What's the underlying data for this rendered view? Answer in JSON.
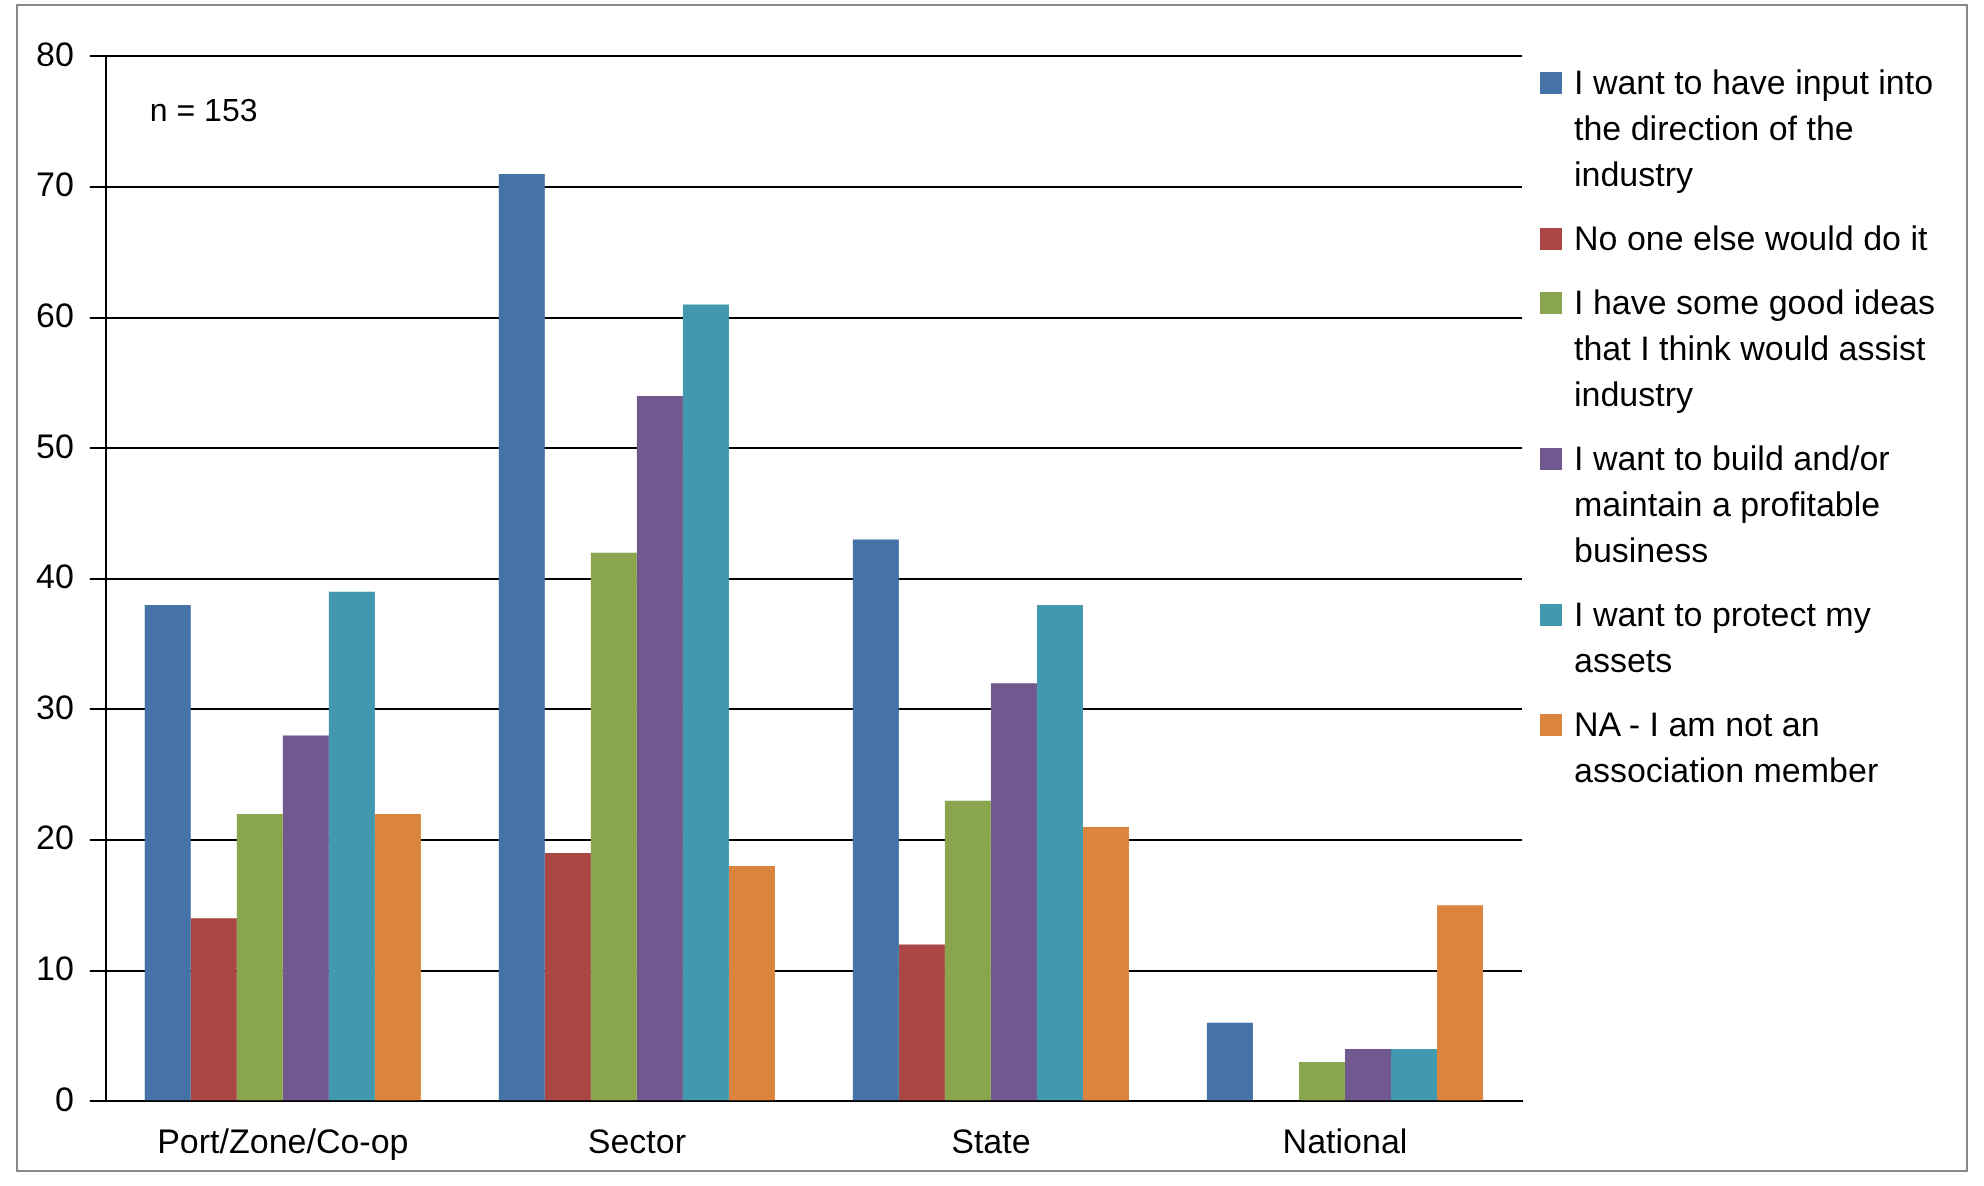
{
  "chart_data": {
    "type": "bar",
    "categories": [
      "Port/Zone/Co-op",
      "Sector",
      "State",
      "National"
    ],
    "series": [
      {
        "name": "I want to have input into the direction of the industry",
        "color": "#4572a7",
        "values": [
          38,
          71,
          43,
          6
        ]
      },
      {
        "name": "No one else would do it",
        "color": "#aa4643",
        "values": [
          14,
          19,
          12,
          0
        ]
      },
      {
        "name": "I have some good ideas that I think would assist industry",
        "color": "#89a54e",
        "values": [
          22,
          42,
          23,
          3
        ]
      },
      {
        "name": "I want to build and/or maintain a profitable business",
        "color": "#71588f",
        "values": [
          28,
          54,
          32,
          4
        ]
      },
      {
        "name": "I want to protect my assets",
        "color": "#4198af",
        "values": [
          39,
          61,
          38,
          4
        ]
      },
      {
        "name": "NA - I am not an association member",
        "color": "#db843d",
        "values": [
          22,
          18,
          21,
          15
        ]
      }
    ],
    "ylim": [
      0,
      80
    ],
    "yticks": [
      0,
      10,
      20,
      30,
      40,
      50,
      60,
      70,
      80
    ],
    "grid": "y",
    "legend": "right",
    "annotations": [
      "n = 153"
    ]
  }
}
